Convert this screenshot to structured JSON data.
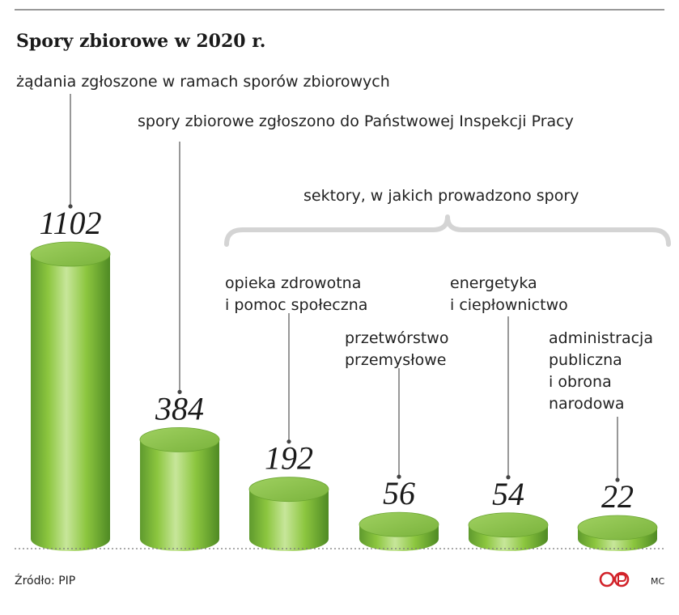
{
  "chart_data": {
    "type": "bar",
    "title": "Spory zbiorowe w 2020 r.",
    "group_label": "sektory, w jakich prowadzono spory",
    "categories": [
      [
        "żądania zgłoszone w ramach sporów zbiorowych"
      ],
      [
        "spory zbiorowe zgłoszono do Państwowej Inspekcji Pracy"
      ],
      [
        "opieka zdrowotna",
        "i pomoc społeczna"
      ],
      [
        "przetwórstwo",
        "przemysłowe"
      ],
      [
        "energetyka",
        "i ciepłownictwo"
      ],
      [
        "administracja",
        "publiczna",
        "i obrona",
        "narodowa"
      ]
    ],
    "values": [
      1102,
      384,
      192,
      56,
      54,
      22
    ],
    "value_labels": [
      "1102",
      "384",
      "192",
      "56",
      "54",
      "22"
    ],
    "bar_color": "#7cb342",
    "style": "3d-cylinder"
  },
  "source": "Źródło: PIP",
  "logo": "CP",
  "author": "MC"
}
